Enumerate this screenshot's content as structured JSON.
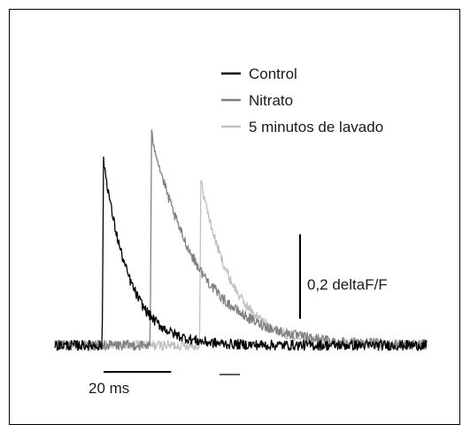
{
  "chart_data": {
    "type": "line",
    "description_units": {
      "x": "ms",
      "y": "deltaF/F"
    },
    "series": [
      {
        "name": "Control",
        "color": "#000000",
        "onset_ms": 0,
        "baseline": 0,
        "peak": 0.44,
        "tau_ms": 7.5,
        "noise": 0.012,
        "key_points": [
          [
            0,
            0
          ],
          [
            0.5,
            0.44
          ],
          [
            5,
            0.22
          ],
          [
            10,
            0.12
          ],
          [
            20,
            0.04
          ],
          [
            40,
            0.0
          ]
        ]
      },
      {
        "name": "Nitrato",
        "color": "#808080",
        "onset_ms": 14.2,
        "baseline": 0,
        "peak": 0.5,
        "tau_ms": 14,
        "noise": 0.012,
        "key_points": [
          [
            14.2,
            0
          ],
          [
            14.7,
            0.5
          ],
          [
            20,
            0.3
          ],
          [
            28,
            0.15
          ],
          [
            40,
            0.05
          ],
          [
            60,
            0.01
          ]
        ]
      },
      {
        "name": "5 minutos de lavado",
        "color": "#c0c0c0",
        "onset_ms": 28.8,
        "baseline": 0,
        "peak": 0.39,
        "tau_ms": 9.5,
        "noise": 0.012,
        "key_points": [
          [
            28.8,
            0
          ],
          [
            29.3,
            0.39
          ],
          [
            35,
            0.2
          ],
          [
            42,
            0.08
          ],
          [
            55,
            0.02
          ]
        ]
      }
    ],
    "xlim": [
      -14,
      96
    ],
    "ylim": [
      -0.05,
      0.62
    ],
    "scale_bars": {
      "x": {
        "value": 20,
        "unit": "ms",
        "label": "20 ms"
      },
      "y": {
        "value": 0.2,
        "unit": "deltaF/F",
        "label": "0,2 deltaF/F"
      }
    },
    "legend": {
      "placement": "top-right",
      "entries": [
        "Control",
        "Nitrato",
        "5 minutos de lavado"
      ]
    },
    "grid": false,
    "title": ""
  }
}
